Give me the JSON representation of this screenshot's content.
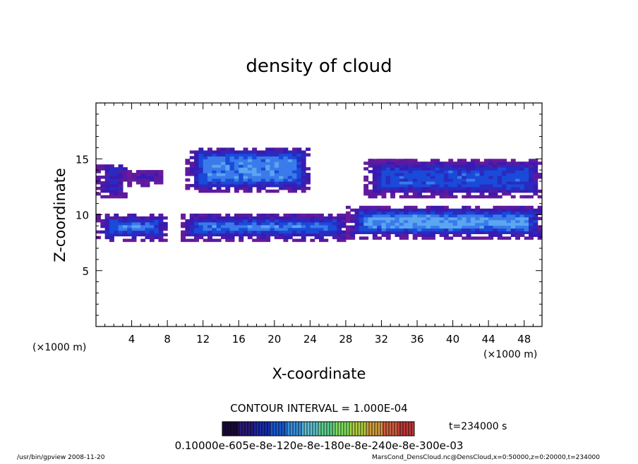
{
  "chart_data": {
    "type": "heatmap",
    "title": "density of cloud",
    "xlabel": "X-coordinate",
    "ylabel": "Z-coordinate",
    "x_unit_left": "(×1000 m)",
    "x_unit_right": "(×1000 m)",
    "xlim": [
      0,
      50
    ],
    "ylim": [
      0,
      20
    ],
    "x_ticks": [
      4,
      8,
      12,
      16,
      20,
      24,
      28,
      32,
      36,
      40,
      44,
      48
    ],
    "y_ticks": [
      5,
      10,
      15
    ],
    "contour_interval_text": "CONTOUR INTERVAL = 1.000E-04",
    "time_text": "t=234000 s",
    "colorbar_label_text": "0.10000e-605e-8e-120e-8e-180e-8e-240e-8e-300e-03",
    "colorbar_colors": [
      "#1a0a3a",
      "#2a1a7a",
      "#1a2ab0",
      "#1a5ad0",
      "#3a90e0",
      "#60c0d0",
      "#60d090",
      "#80e060",
      "#b0d040",
      "#d0a040",
      "#d06040",
      "#c03a3a"
    ],
    "cloud_layers": [
      {
        "name": "upper",
        "regions": [
          {
            "x": [
              0,
              3.5
            ],
            "z": [
              11.5,
              14.5
            ],
            "core": 0.6
          },
          {
            "x": [
              3.5,
              7.5
            ],
            "z": [
              12.5,
              14
            ],
            "core": 0.3
          },
          {
            "x": [
              10,
              24
            ],
            "z": [
              12,
              16
            ],
            "core": 0.8
          },
          {
            "x": [
              30.5,
              36
            ],
            "z": [
              14,
              14.8
            ],
            "core": 0.3
          },
          {
            "x": [
              30,
              50
            ],
            "z": [
              11.5,
              14.8
            ],
            "core": 0.6
          }
        ]
      },
      {
        "name": "lower",
        "regions": [
          {
            "x": [
              0,
              8
            ],
            "z": [
              7.6,
              10
            ],
            "core": 0.8
          },
          {
            "x": [
              9.5,
              28
            ],
            "z": [
              7.6,
              10
            ],
            "core": 0.8
          },
          {
            "x": [
              28,
              50
            ],
            "z": [
              7.8,
              10.7
            ],
            "core": 0.9
          }
        ]
      }
    ]
  },
  "footer": {
    "left": "/usr/bin/gpview  2008-11-20",
    "right": "MarsCond_DensCloud.nc@DensCloud,x=0:50000,z=0:20000,t=234000"
  }
}
